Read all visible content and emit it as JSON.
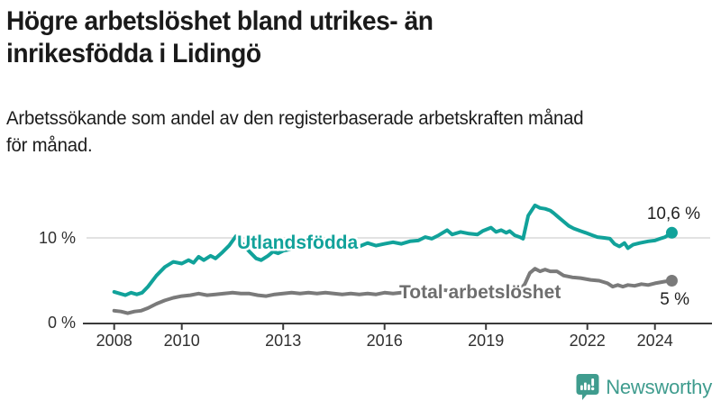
{
  "header": {
    "title_lines": [
      "Högre arbetslöshet bland utrikes- än",
      "inrikesfödda i Lidingö"
    ],
    "subtitle_lines": [
      "Arbetssökande som andel av den registerbaserade arbetskraften månad",
      "för månad."
    ]
  },
  "chart_data": {
    "type": "line",
    "title": "Högre arbetslöshet bland utrikes- än inrikesfödda i Lidingö",
    "subtitle": "Arbetssökande som andel av den registerbaserade arbetskraften månad för månad.",
    "unit": "%",
    "grid": "horizontal-10-only",
    "legend_position": "inline-labels",
    "x_axis": {
      "range": [
        2007.85,
        2024.75
      ],
      "ticks": [
        {
          "label": "2008",
          "year": 2008
        },
        {
          "label": "2010",
          "year": 2010
        },
        {
          "label": "2013",
          "year": 2013
        },
        {
          "label": "2016",
          "year": 2016
        },
        {
          "label": "2019",
          "year": 2019
        },
        {
          "label": "2022",
          "year": 2022
        },
        {
          "label": "2024",
          "year": 2024
        }
      ]
    },
    "y_axis": {
      "range": [
        0,
        14.5
      ],
      "ticks": [
        {
          "label": "0 %",
          "value": 0
        },
        {
          "label": "10 %",
          "value": 10
        }
      ],
      "gridlines": [
        10
      ]
    },
    "series": [
      {
        "name": "Utlandsfödda",
        "color": "#11a29a",
        "end_value": 10.6,
        "end_label": "10,6 %",
        "points": [
          [
            2008.0,
            3.7
          ],
          [
            2008.17,
            3.5
          ],
          [
            2008.33,
            3.3
          ],
          [
            2008.5,
            3.6
          ],
          [
            2008.67,
            3.4
          ],
          [
            2008.83,
            3.6
          ],
          [
            2009.0,
            4.3
          ],
          [
            2009.25,
            5.6
          ],
          [
            2009.5,
            6.6
          ],
          [
            2009.75,
            7.2
          ],
          [
            2010.0,
            7.0
          ],
          [
            2010.2,
            7.4
          ],
          [
            2010.35,
            7.1
          ],
          [
            2010.5,
            7.8
          ],
          [
            2010.65,
            7.4
          ],
          [
            2010.85,
            7.9
          ],
          [
            2011.0,
            7.6
          ],
          [
            2011.2,
            8.3
          ],
          [
            2011.4,
            9.1
          ],
          [
            2011.6,
            10.2
          ],
          [
            2011.8,
            9.3
          ],
          [
            2012.0,
            8.4
          ],
          [
            2012.2,
            7.6
          ],
          [
            2012.35,
            7.4
          ],
          [
            2012.55,
            7.9
          ],
          [
            2012.7,
            8.4
          ],
          [
            2012.85,
            8.2
          ],
          [
            2013.0,
            8.5
          ],
          [
            2013.25,
            8.7
          ],
          [
            2013.5,
            8.9
          ],
          [
            2013.75,
            8.8
          ],
          [
            2014.0,
            9.0
          ],
          [
            2014.25,
            8.9
          ],
          [
            2014.5,
            9.1
          ],
          [
            2014.75,
            9.0
          ],
          [
            2015.0,
            9.2
          ],
          [
            2015.25,
            9.0
          ],
          [
            2015.5,
            9.4
          ],
          [
            2015.75,
            9.1
          ],
          [
            2016.0,
            9.3
          ],
          [
            2016.25,
            9.5
          ],
          [
            2016.5,
            9.3
          ],
          [
            2016.75,
            9.6
          ],
          [
            2017.0,
            9.7
          ],
          [
            2017.2,
            10.1
          ],
          [
            2017.4,
            9.9
          ],
          [
            2017.6,
            10.3
          ],
          [
            2017.85,
            10.9
          ],
          [
            2018.0,
            10.4
          ],
          [
            2018.25,
            10.7
          ],
          [
            2018.5,
            10.5
          ],
          [
            2018.75,
            10.4
          ],
          [
            2018.9,
            10.8
          ],
          [
            2019.15,
            11.2
          ],
          [
            2019.3,
            10.7
          ],
          [
            2019.45,
            10.9
          ],
          [
            2019.6,
            10.6
          ],
          [
            2019.7,
            10.8
          ],
          [
            2019.85,
            10.3
          ],
          [
            2020.0,
            10.1
          ],
          [
            2020.1,
            9.9
          ],
          [
            2020.25,
            12.6
          ],
          [
            2020.45,
            13.8
          ],
          [
            2020.6,
            13.5
          ],
          [
            2020.75,
            13.4
          ],
          [
            2020.9,
            13.2
          ],
          [
            2021.0,
            12.9
          ],
          [
            2021.15,
            12.4
          ],
          [
            2021.3,
            11.9
          ],
          [
            2021.45,
            11.4
          ],
          [
            2021.6,
            11.1
          ],
          [
            2021.8,
            10.8
          ],
          [
            2021.95,
            10.6
          ],
          [
            2022.15,
            10.3
          ],
          [
            2022.3,
            10.1
          ],
          [
            2022.5,
            10.0
          ],
          [
            2022.67,
            9.9
          ],
          [
            2022.8,
            9.3
          ],
          [
            2022.95,
            9.0
          ],
          [
            2023.1,
            9.4
          ],
          [
            2023.2,
            8.8
          ],
          [
            2023.35,
            9.2
          ],
          [
            2023.55,
            9.4
          ],
          [
            2023.8,
            9.6
          ],
          [
            2024.0,
            9.7
          ],
          [
            2024.15,
            9.9
          ],
          [
            2024.3,
            10.1
          ],
          [
            2024.5,
            10.6
          ]
        ]
      },
      {
        "name": "Total arbetslöshet",
        "color": "#7a7a7a",
        "end_value": 5.0,
        "end_label": "5 %",
        "points": [
          [
            2008.0,
            1.5
          ],
          [
            2008.2,
            1.4
          ],
          [
            2008.4,
            1.2
          ],
          [
            2008.6,
            1.4
          ],
          [
            2008.8,
            1.5
          ],
          [
            2009.0,
            1.8
          ],
          [
            2009.25,
            2.3
          ],
          [
            2009.5,
            2.7
          ],
          [
            2009.75,
            3.0
          ],
          [
            2010.0,
            3.2
          ],
          [
            2010.25,
            3.3
          ],
          [
            2010.5,
            3.5
          ],
          [
            2010.75,
            3.3
          ],
          [
            2011.0,
            3.4
          ],
          [
            2011.25,
            3.5
          ],
          [
            2011.5,
            3.6
          ],
          [
            2011.75,
            3.5
          ],
          [
            2012.0,
            3.5
          ],
          [
            2012.25,
            3.3
          ],
          [
            2012.5,
            3.2
          ],
          [
            2012.75,
            3.4
          ],
          [
            2013.0,
            3.5
          ],
          [
            2013.25,
            3.6
          ],
          [
            2013.5,
            3.5
          ],
          [
            2013.75,
            3.6
          ],
          [
            2014.0,
            3.5
          ],
          [
            2014.25,
            3.6
          ],
          [
            2014.5,
            3.5
          ],
          [
            2014.75,
            3.4
          ],
          [
            2015.0,
            3.5
          ],
          [
            2015.25,
            3.4
          ],
          [
            2015.5,
            3.5
          ],
          [
            2015.75,
            3.4
          ],
          [
            2016.0,
            3.6
          ],
          [
            2016.25,
            3.5
          ],
          [
            2016.5,
            3.6
          ],
          [
            2016.75,
            3.7
          ],
          [
            2017.0,
            3.6
          ],
          [
            2017.25,
            3.8
          ],
          [
            2017.5,
            3.7
          ],
          [
            2017.75,
            3.9
          ],
          [
            2018.0,
            3.8
          ],
          [
            2018.25,
            3.9
          ],
          [
            2018.5,
            3.8
          ],
          [
            2018.75,
            3.7
          ],
          [
            2019.0,
            3.8
          ],
          [
            2019.25,
            3.9
          ],
          [
            2019.5,
            3.8
          ],
          [
            2019.75,
            3.7
          ],
          [
            2020.0,
            3.9
          ],
          [
            2020.15,
            4.6
          ],
          [
            2020.3,
            5.9
          ],
          [
            2020.45,
            6.4
          ],
          [
            2020.6,
            6.1
          ],
          [
            2020.75,
            6.3
          ],
          [
            2020.9,
            6.1
          ],
          [
            2021.1,
            6.1
          ],
          [
            2021.3,
            5.6
          ],
          [
            2021.55,
            5.4
          ],
          [
            2021.8,
            5.3
          ],
          [
            2022.1,
            5.1
          ],
          [
            2022.35,
            5.0
          ],
          [
            2022.6,
            4.7
          ],
          [
            2022.75,
            4.3
          ],
          [
            2022.9,
            4.5
          ],
          [
            2023.05,
            4.3
          ],
          [
            2023.2,
            4.5
          ],
          [
            2023.4,
            4.4
          ],
          [
            2023.6,
            4.6
          ],
          [
            2023.8,
            4.5
          ],
          [
            2024.0,
            4.7
          ],
          [
            2024.15,
            4.8
          ],
          [
            2024.3,
            4.9
          ],
          [
            2024.5,
            5.0
          ]
        ]
      }
    ]
  },
  "colors": {
    "accent_teal": "#11a29a",
    "line_gray": "#7a7a7a",
    "label_gray": "#6e6e6e",
    "axis": "#3a3a3a",
    "gridline": "#d9d9d9",
    "text": "#1a1a1a",
    "brand_teal": "#3f9c8e"
  },
  "footer": {
    "brand": "Newsworthy"
  }
}
